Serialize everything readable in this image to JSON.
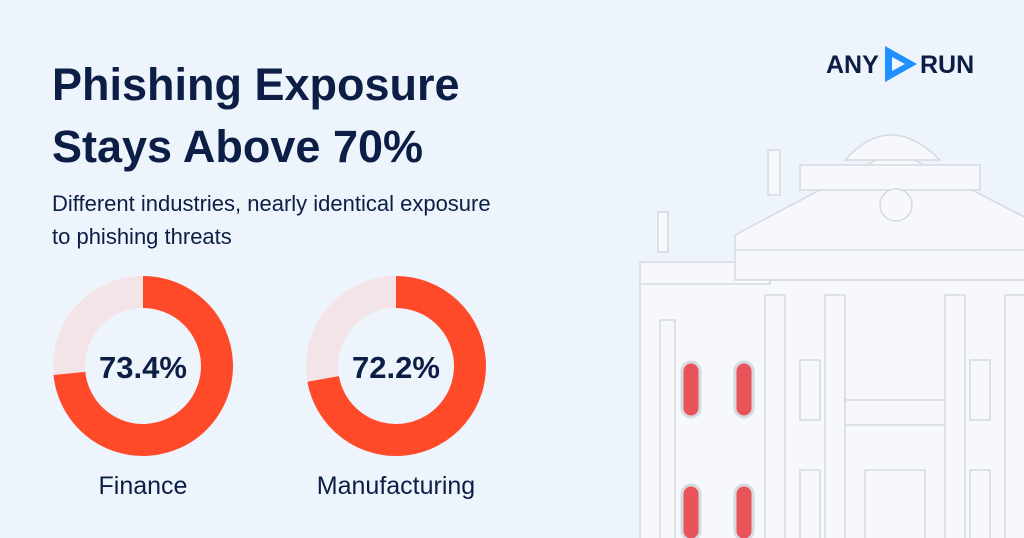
{
  "header": {
    "title_lines": [
      "Phishing Exposure",
      "Stays Above 70%"
    ],
    "subtitle_lines": [
      "Different industries, nearly identical exposure",
      "to phishing threats"
    ]
  },
  "logo": {
    "left": "ANY",
    "right": "RUN"
  },
  "chart_data": [
    {
      "type": "donut",
      "title": "Finance",
      "values": [
        73.4
      ],
      "value_labels": [
        "73.4%"
      ],
      "color": "#ff4a2a",
      "track_color": "#f3e4e8"
    },
    {
      "type": "donut",
      "title": "Manufacturing",
      "values": [
        72.2
      ],
      "value_labels": [
        "72.2%"
      ],
      "color": "#ff4a2a",
      "track_color": "#f3e4e8"
    }
  ]
}
